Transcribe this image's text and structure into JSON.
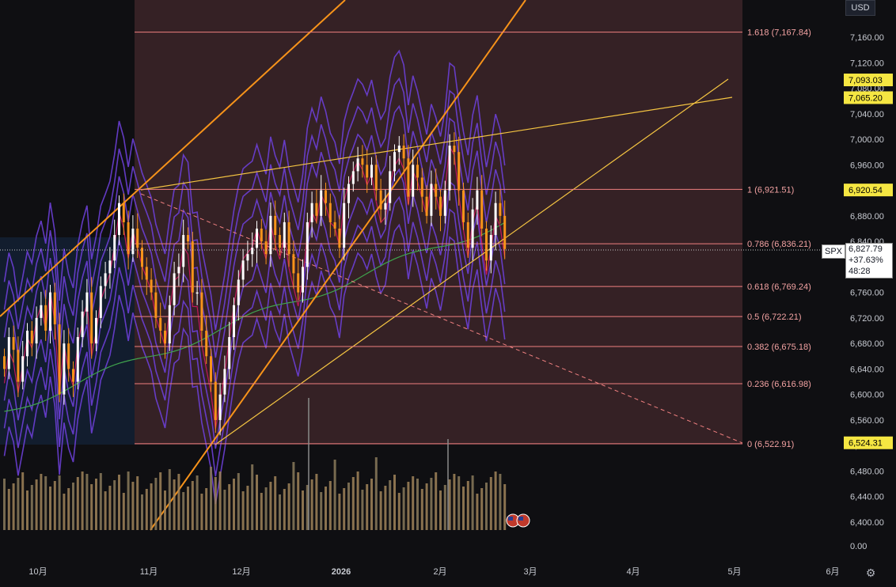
{
  "toolbar": {
    "currency": "USD",
    "settings_icon": "gear-icon"
  },
  "symbol": {
    "ticker": "SPX",
    "price": "6,827.79",
    "change": "+37.63%",
    "countdown": "48:28"
  },
  "price_tags": [
    {
      "label": "7,093.03",
      "price": 7093.03,
      "color": "#f5e642"
    },
    {
      "label": "7,065.20",
      "price": 7065.2,
      "color": "#f5e642"
    },
    {
      "label": "6,920.54",
      "price": 6920.54,
      "color": "#f5e642"
    },
    {
      "label": "6,524.31",
      "price": 6524.31,
      "color": "#f5e642"
    }
  ],
  "chart_data": {
    "type": "candlestick",
    "title": "",
    "y_ticks": [
      "7,160.00",
      "7,120.00",
      "7,080.00",
      "7,040.00",
      "7,000.00",
      "6,960.00",
      "6,920.00",
      "6,880.00",
      "6,840.00",
      "6,800.00",
      "6,760.00",
      "6,720.00",
      "6,680.00",
      "6,640.00",
      "6,600.00",
      "6,560.00",
      "6,520.00",
      "6,480.00",
      "6,440.00",
      "6,400.00"
    ],
    "y_tick_values": [
      7160,
      7120,
      7080,
      7040,
      7000,
      6960,
      6920,
      6880,
      6840,
      6800,
      6760,
      6720,
      6680,
      6640,
      6600,
      6560,
      6520,
      6480,
      6440,
      6400
    ],
    "volume_axis_label": "0.00",
    "x_ticks": [
      "10月",
      "11月",
      "12月",
      "2026",
      "2月",
      "3月",
      "4月",
      "5月",
      "6月"
    ],
    "fib_levels": [
      {
        "ratio": 1.618,
        "label": "1.618 (7,167.84)",
        "price": 7167.84
      },
      {
        "ratio": 1,
        "label": "1 (6,921.51)",
        "price": 6921.51
      },
      {
        "ratio": 0.786,
        "label": "0.786 (6,836.21)",
        "price": 6836.21
      },
      {
        "ratio": 0.618,
        "label": "0.618 (6,769.24)",
        "price": 6769.24
      },
      {
        "ratio": 0.5,
        "label": "0.5 (6,722.21)",
        "price": 6722.21
      },
      {
        "ratio": 0.382,
        "label": "0.382 (6,675.18)",
        "price": 6675.18
      },
      {
        "ratio": 0.236,
        "label": "0.236 (6,616.98)",
        "price": 6616.98
      },
      {
        "ratio": 0,
        "label": "0 (6,522.91)",
        "price": 6522.91
      }
    ],
    "candles_close": [
      6640,
      6690,
      6670,
      6620,
      6660,
      6700,
      6680,
      6720,
      6740,
      6700,
      6760,
      6710,
      6600,
      6680,
      6640,
      6620,
      6690,
      6730,
      6760,
      6680,
      6720,
      6770,
      6790,
      6810,
      6850,
      6900,
      6870,
      6820,
      6860,
      6830,
      6800,
      6780,
      6760,
      6720,
      6700,
      6680,
      6740,
      6790,
      6800,
      6850,
      6840,
      6760,
      6760,
      6700,
      6660,
      6620,
      6560,
      6600,
      6640,
      6690,
      6740,
      6780,
      6810,
      6820,
      6830,
      6860,
      6840,
      6820,
      6880,
      6850,
      6830,
      6870,
      6820,
      6790,
      6760,
      6800,
      6870,
      6900,
      6880,
      6920,
      6900,
      6870,
      6860,
      6830,
      6900,
      6930,
      6950,
      6970,
      6960,
      6940,
      6960,
      6920,
      6890,
      6900,
      6950,
      6980,
      6990,
      6970,
      6910,
      6960,
      6940,
      6910,
      6880,
      6930,
      6910,
      6880,
      6920,
      6990,
      6980,
      6920,
      6870,
      6830,
      6890,
      6920,
      6860,
      6810,
      6850,
      6900,
      6880,
      6828
    ],
    "volume_bars_count": 110
  }
}
